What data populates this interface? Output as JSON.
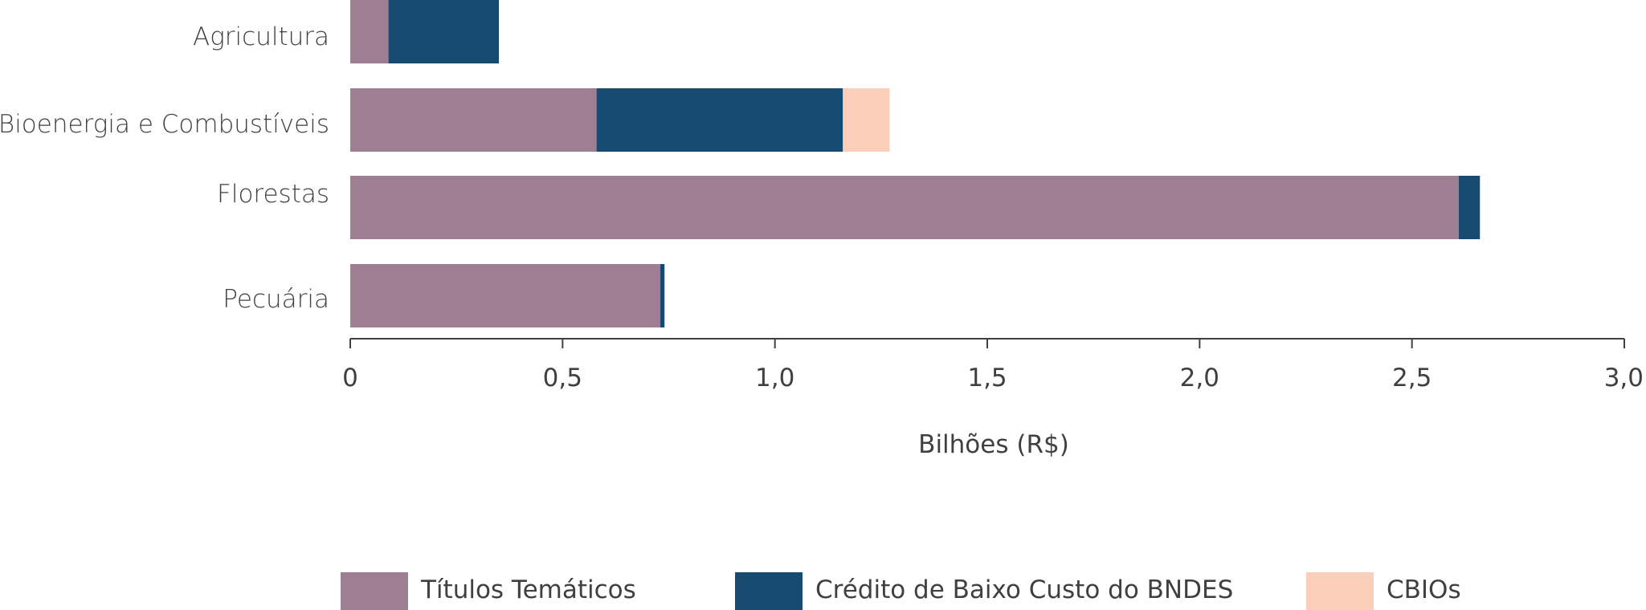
{
  "chart_data": {
    "type": "bar",
    "orientation": "horizontal",
    "stacked": true,
    "title": "",
    "xlabel": "Bilhões (R$)",
    "ylabel": "",
    "xlim": [
      0,
      3.0
    ],
    "xticks": [
      0,
      0.5,
      1.0,
      1.5,
      2.0,
      2.5,
      3.0
    ],
    "xtick_labels": [
      "0",
      "0,5",
      "1,0",
      "1,5",
      "2,0",
      "2,5",
      "3,0"
    ],
    "grid": false,
    "legend_position": "bottom",
    "categories": [
      "Agricultura",
      "Bioenergia e Combustíveis",
      "Florestas",
      "Pecuária"
    ],
    "series": [
      {
        "name": "Títulos Temáticos",
        "color": "#9e7e93",
        "values": [
          0.09,
          0.58,
          2.61,
          0.73
        ]
      },
      {
        "name": "Crédito de Baixo Custo do BNDES",
        "color": "#164a70",
        "values": [
          0.26,
          0.58,
          0.05,
          0.01
        ]
      },
      {
        "name": "CBIOs",
        "color": "#fbcfb9",
        "values": [
          0,
          0.11,
          0,
          0
        ]
      }
    ]
  }
}
